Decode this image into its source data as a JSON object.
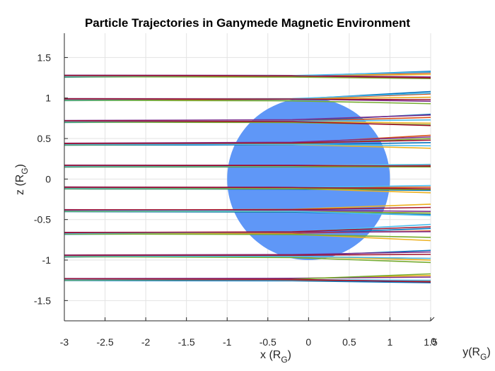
{
  "chart_data": {
    "type": "line",
    "title": "Particle Trajectories in Ganymede Magnetic Environment",
    "xlabel": {
      "base": "x (R",
      "sub": "G",
      "close": ")"
    },
    "ylabel": {
      "base": "z (R",
      "sub": "G",
      "close": ")"
    },
    "y2label": {
      "base": "y(R",
      "sub": "G",
      "close": ")"
    },
    "xlim": [
      -3,
      1.5
    ],
    "ylim": [
      -1.75,
      1.8
    ],
    "xticks": [
      "-3",
      "-2.5",
      "-2",
      "-1.5",
      "-1",
      "-0.5",
      "0",
      "0.5",
      "1",
      "1.5"
    ],
    "yticks": [
      "1.5",
      "1",
      "0.5",
      "0",
      "-0.5",
      "-1",
      "-1.5"
    ],
    "depth_tick_label": "0",
    "grid": true,
    "moon": {
      "center_x": 0,
      "center_z": 0,
      "radius": 1,
      "color": "#5f97f7"
    },
    "series_colors": [
      "#0072BD",
      "#D95319",
      "#EDB120",
      "#7E2F8E",
      "#77AC30",
      "#4DBEEE",
      "#A2142F"
    ],
    "trajectory_bands": [
      {
        "z_start": 1.27,
        "end_offsets": [
          0.06,
          0.04,
          0.02,
          -0.01,
          -0.03,
          0.05,
          -0.02
        ]
      },
      {
        "z_start": 0.98,
        "end_offsets": [
          0.1,
          0.07,
          0.03,
          -0.02,
          -0.05,
          0.08,
          0.0
        ]
      },
      {
        "z_start": 0.71,
        "end_offsets": [
          0.09,
          0.05,
          -0.02,
          0.08,
          -0.04,
          0.02,
          -0.05
        ]
      },
      {
        "z_start": 0.43,
        "end_offsets": [
          0.02,
          0.11,
          -0.05,
          0.09,
          0.07,
          -0.02,
          0.05
        ]
      },
      {
        "z_start": 0.16,
        "end_offsets": [
          0.0,
          0.01,
          0.02,
          0.0,
          -0.01,
          0.02,
          0.0
        ]
      },
      {
        "z_start": -0.11,
        "end_offsets": [
          -0.03,
          0.01,
          -0.06,
          -0.02,
          -0.02,
          0.03,
          -0.01
        ]
      },
      {
        "z_start": -0.39,
        "end_offsets": [
          -0.05,
          -0.03,
          0.08,
          -0.01,
          -0.03,
          -0.06,
          0.04
        ]
      },
      {
        "z_start": -0.67,
        "end_offsets": [
          0.06,
          0.03,
          -0.09,
          0.02,
          -0.05,
          0.11,
          0.08
        ]
      },
      {
        "z_start": -0.95,
        "end_offsets": [
          0.07,
          -0.03,
          -0.05,
          0.05,
          -0.08,
          -0.03,
          0.02
        ]
      },
      {
        "z_start": -1.24,
        "end_offsets": [
          -0.04,
          -0.02,
          0.05,
          0.03,
          0.07,
          -0.01,
          -0.03
        ]
      }
    ]
  }
}
